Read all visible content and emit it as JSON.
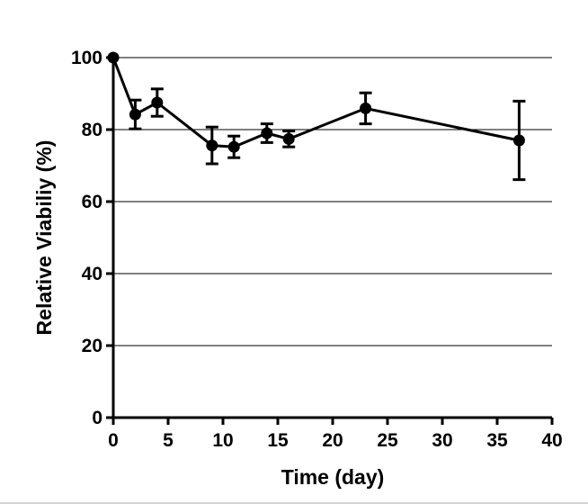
{
  "chart_data": {
    "type": "line",
    "title": "",
    "xlabel": "Time (day)",
    "ylabel": "Relative Viabiliy (%)",
    "xlim": [
      0,
      40
    ],
    "ylim": [
      0,
      100
    ],
    "xticks": [
      0,
      5,
      10,
      15,
      20,
      25,
      30,
      35,
      40
    ],
    "yticks": [
      0,
      20,
      40,
      60,
      80,
      100
    ],
    "grid": "horizontal",
    "series": [
      {
        "name": "Relative Viability",
        "x": [
          0,
          2,
          4,
          9,
          11,
          14,
          16,
          23,
          37
        ],
        "y": [
          100,
          84.2,
          87.5,
          75.6,
          75.2,
          79.0,
          77.4,
          85.9,
          77.0
        ],
        "err_low": [
          0,
          4.0,
          3.8,
          5.1,
          3.0,
          2.6,
          2.2,
          4.3,
          10.9
        ],
        "err_high": [
          0,
          4.0,
          3.8,
          5.1,
          3.0,
          2.6,
          2.2,
          4.3,
          10.9
        ]
      }
    ],
    "colors": {
      "line": "#000000",
      "grid": "#000000",
      "background": "#ffffff"
    }
  }
}
